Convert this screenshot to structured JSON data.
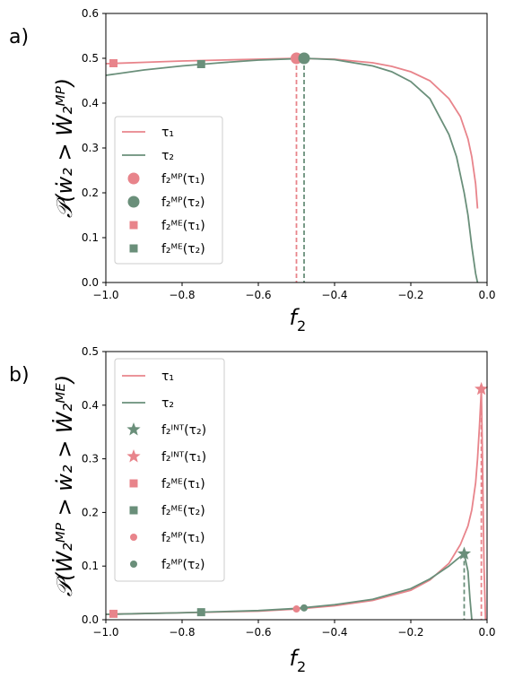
{
  "colors": {
    "tau1": "#e8848b",
    "tau2": "#6a8f7a"
  },
  "chart_data": [
    {
      "type": "line",
      "panel_label": "a)",
      "xlabel": "f",
      "xlabel_sub": "2",
      "ylabel": "𝒫(ẇ₂ > Ẇ₂ᴹᴾ)",
      "xlim": [
        -1.0,
        0.0
      ],
      "ylim": [
        0.0,
        0.6
      ],
      "x_ticks": [
        -1.0,
        -0.8,
        -0.6,
        -0.4,
        -0.2,
        0.0
      ],
      "x_tick_labels": [
        "−1.0",
        "−0.8",
        "−0.6",
        "−0.4",
        "−0.2",
        "0.0"
      ],
      "y_ticks": [
        0.0,
        0.1,
        0.2,
        0.3,
        0.4,
        0.5,
        0.6
      ],
      "y_tick_labels": [
        "0.0",
        "0.1",
        "0.2",
        "0.3",
        "0.4",
        "0.5",
        "0.6"
      ],
      "legend_position": "lower-left",
      "series": [
        {
          "name": "τ₁",
          "kind": "line",
          "color_key": "tau1",
          "x": [
            -1.0,
            -0.9,
            -0.8,
            -0.7,
            -0.6,
            -0.5,
            -0.4,
            -0.3,
            -0.25,
            -0.2,
            -0.15,
            -0.1,
            -0.07,
            -0.05,
            -0.04,
            -0.03,
            -0.025
          ],
          "y": [
            0.488,
            0.491,
            0.494,
            0.496,
            0.498,
            0.5,
            0.498,
            0.49,
            0.482,
            0.47,
            0.45,
            0.41,
            0.37,
            0.32,
            0.28,
            0.22,
            0.165
          ]
        },
        {
          "name": "τ₂",
          "kind": "line",
          "color_key": "tau2",
          "x": [
            -1.0,
            -0.9,
            -0.8,
            -0.7,
            -0.6,
            -0.5,
            -0.48,
            -0.4,
            -0.3,
            -0.25,
            -0.2,
            -0.15,
            -0.1,
            -0.08,
            -0.06,
            -0.05,
            -0.04,
            -0.03,
            -0.025
          ],
          "y": [
            0.462,
            0.474,
            0.483,
            0.49,
            0.496,
            0.499,
            0.5,
            0.497,
            0.483,
            0.47,
            0.448,
            0.41,
            0.33,
            0.28,
            0.2,
            0.15,
            0.08,
            0.02,
            0.0
          ]
        },
        {
          "name": "f₂ᴹᴾ(τ₁)",
          "kind": "marker",
          "marker": "circle-large",
          "color_key": "tau1",
          "x": [
            -0.5
          ],
          "y": [
            0.5
          ],
          "dropline": "dashed"
        },
        {
          "name": "f₂ᴹᴾ(τ₂)",
          "kind": "marker",
          "marker": "circle-large",
          "color_key": "tau2",
          "x": [
            -0.48
          ],
          "y": [
            0.5
          ],
          "dropline": "dashed"
        },
        {
          "name": "f₂ᴹᴱ(τ₁)",
          "kind": "marker",
          "marker": "square",
          "color_key": "tau1",
          "x": [
            -0.98
          ],
          "y": [
            0.489
          ]
        },
        {
          "name": "f₂ᴹᴱ(τ₂)",
          "kind": "marker",
          "marker": "square",
          "color_key": "tau2",
          "x": [
            -0.75
          ],
          "y": [
            0.487
          ]
        }
      ]
    },
    {
      "type": "line",
      "panel_label": "b)",
      "xlabel": "f",
      "xlabel_sub": "2",
      "ylabel": "𝒫(Ẇ₂ᴹᴾ > ẇ₂ > Ẇ₂ᴹᴱ)",
      "xlim": [
        -1.0,
        0.0
      ],
      "ylim": [
        0.0,
        0.5
      ],
      "x_ticks": [
        -1.0,
        -0.8,
        -0.6,
        -0.4,
        -0.2,
        0.0
      ],
      "x_tick_labels": [
        "−1.0",
        "−0.8",
        "−0.6",
        "−0.4",
        "−0.2",
        "0.0"
      ],
      "y_ticks": [
        0.0,
        0.1,
        0.2,
        0.3,
        0.4,
        0.5
      ],
      "y_tick_labels": [
        "0.0",
        "0.1",
        "0.2",
        "0.3",
        "0.4",
        "0.5"
      ],
      "legend_position": "upper-left",
      "series": [
        {
          "name": "τ₁",
          "kind": "line",
          "color_key": "tau1",
          "x": [
            -1.0,
            -0.8,
            -0.6,
            -0.5,
            -0.4,
            -0.3,
            -0.2,
            -0.15,
            -0.1,
            -0.07,
            -0.05,
            -0.04,
            -0.03,
            -0.025,
            -0.02,
            -0.015,
            -0.012,
            -0.008,
            -0.004
          ],
          "y": [
            0.01,
            0.013,
            0.016,
            0.02,
            0.026,
            0.036,
            0.055,
            0.074,
            0.105,
            0.14,
            0.175,
            0.205,
            0.255,
            0.3,
            0.36,
            0.43,
            0.3,
            0.1,
            0.0
          ]
        },
        {
          "name": "τ₂",
          "kind": "line",
          "color_key": "tau2",
          "x": [
            -1.0,
            -0.8,
            -0.6,
            -0.5,
            -0.4,
            -0.3,
            -0.2,
            -0.15,
            -0.1,
            -0.08,
            -0.06,
            -0.05,
            -0.045,
            -0.04
          ],
          "y": [
            0.01,
            0.013,
            0.017,
            0.021,
            0.028,
            0.038,
            0.058,
            0.076,
            0.1,
            0.112,
            0.123,
            0.09,
            0.04,
            0.0
          ]
        },
        {
          "name": "f₂ᴵᴺᵀ(τ₂)",
          "kind": "marker",
          "marker": "star",
          "color_key": "tau2",
          "x": [
            -0.06
          ],
          "y": [
            0.123
          ],
          "dropline": "dashed"
        },
        {
          "name": "f₂ᴵᴺᵀ(τ₁)",
          "kind": "marker",
          "marker": "star",
          "color_key": "tau1",
          "x": [
            -0.015
          ],
          "y": [
            0.43
          ],
          "dropline": "dashed"
        },
        {
          "name": "f₂ᴹᴱ(τ₁)",
          "kind": "marker",
          "marker": "square",
          "color_key": "tau1",
          "x": [
            -0.98
          ],
          "y": [
            0.011
          ]
        },
        {
          "name": "f₂ᴹᴱ(τ₂)",
          "kind": "marker",
          "marker": "square",
          "color_key": "tau2",
          "x": [
            -0.75
          ],
          "y": [
            0.014
          ]
        },
        {
          "name": "f₂ᴹᴾ(τ₁)",
          "kind": "marker",
          "marker": "circle-small",
          "color_key": "tau1",
          "x": [
            -0.5
          ],
          "y": [
            0.02
          ]
        },
        {
          "name": "f₂ᴹᴾ(τ₂)",
          "kind": "marker",
          "marker": "circle-small",
          "color_key": "tau2",
          "x": [
            -0.48
          ],
          "y": [
            0.022
          ]
        }
      ]
    }
  ]
}
